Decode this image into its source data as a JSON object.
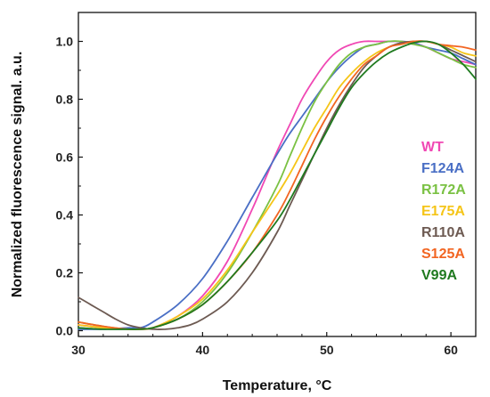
{
  "chart_data": {
    "type": "line",
    "title": "",
    "xlabel": "Temperature, °C",
    "ylabel": "Normalized fluorescence signal. a.u.",
    "xlim": [
      30,
      62
    ],
    "ylim": [
      -0.02,
      1.1
    ],
    "xticks": [
      30,
      40,
      50,
      60
    ],
    "yticks": [
      0.0,
      0.2,
      0.4,
      0.6,
      0.8,
      1.0
    ],
    "ytick_labels": [
      "0.0",
      "0.2",
      "0.4",
      "0.6",
      "0.8",
      "1.0"
    ],
    "grid": false,
    "legend_position": "right",
    "series": [
      {
        "name": "WT",
        "color": "#f048b4",
        "x": [
          30,
          32,
          34,
          35,
          36,
          38,
          40,
          42,
          44,
          45,
          46,
          47,
          48,
          49,
          50,
          51,
          52,
          53,
          54,
          55,
          56,
          57,
          58,
          59,
          60,
          61,
          62
        ],
        "y": [
          0.02,
          0.01,
          0.005,
          0.005,
          0.01,
          0.05,
          0.12,
          0.24,
          0.42,
          0.52,
          0.62,
          0.71,
          0.8,
          0.87,
          0.93,
          0.97,
          0.99,
          1.0,
          1.0,
          1.0,
          1.0,
          0.995,
          0.98,
          0.96,
          0.94,
          0.93,
          0.92
        ]
      },
      {
        "name": "F124A",
        "color": "#4a6fc5",
        "x": [
          30,
          32,
          34,
          35,
          36,
          38,
          40,
          42,
          44,
          46,
          47,
          48,
          49,
          50,
          51,
          52,
          53,
          54,
          55,
          56,
          57,
          58,
          59,
          60,
          61,
          62
        ],
        "y": [
          0.005,
          0.005,
          0.01,
          0.01,
          0.03,
          0.09,
          0.18,
          0.31,
          0.46,
          0.61,
          0.68,
          0.74,
          0.8,
          0.86,
          0.91,
          0.95,
          0.98,
          0.99,
          1.0,
          1.0,
          0.995,
          0.98,
          0.97,
          0.96,
          0.94,
          0.92
        ]
      },
      {
        "name": "R172A",
        "color": "#7ac143",
        "x": [
          30,
          32,
          34,
          35,
          36,
          38,
          40,
          42,
          44,
          46,
          47,
          48,
          49,
          50,
          51,
          52,
          53,
          54,
          55,
          56,
          57,
          58,
          59,
          60,
          61,
          62
        ],
        "y": [
          0.03,
          0.015,
          0.005,
          0.005,
          0.01,
          0.04,
          0.1,
          0.2,
          0.34,
          0.5,
          0.6,
          0.7,
          0.79,
          0.86,
          0.92,
          0.96,
          0.98,
          0.99,
          1.0,
          1.0,
          0.99,
          0.98,
          0.96,
          0.94,
          0.92,
          0.91
        ]
      },
      {
        "name": "E175A",
        "color": "#f5c518",
        "x": [
          30,
          32,
          34,
          35,
          36,
          38,
          40,
          42,
          44,
          46,
          47,
          48,
          49,
          50,
          51,
          52,
          53,
          54,
          55,
          56,
          57,
          58,
          59,
          60,
          61,
          62
        ],
        "y": [
          0.02,
          0.01,
          0.005,
          0.005,
          0.01,
          0.05,
          0.11,
          0.21,
          0.34,
          0.47,
          0.54,
          0.62,
          0.7,
          0.77,
          0.84,
          0.89,
          0.93,
          0.96,
          0.98,
          0.995,
          1.0,
          1.0,
          0.99,
          0.98,
          0.96,
          0.95
        ]
      },
      {
        "name": "R110A",
        "color": "#6d5a52",
        "x": [
          30,
          31,
          32,
          33,
          34,
          35,
          36,
          37,
          38,
          39,
          40,
          42,
          44,
          46,
          47,
          48,
          49,
          50,
          51,
          52,
          53,
          54,
          55,
          56,
          57,
          58,
          59,
          60,
          61,
          62
        ],
        "y": [
          0.115,
          0.09,
          0.065,
          0.04,
          0.02,
          0.01,
          0.005,
          0.005,
          0.01,
          0.02,
          0.04,
          0.1,
          0.2,
          0.34,
          0.43,
          0.52,
          0.61,
          0.7,
          0.78,
          0.85,
          0.91,
          0.95,
          0.98,
          0.995,
          1.0,
          1.0,
          0.99,
          0.97,
          0.95,
          0.93
        ]
      },
      {
        "name": "S125A",
        "color": "#f26522",
        "x": [
          30,
          32,
          34,
          35,
          36,
          38,
          40,
          42,
          44,
          46,
          47,
          48,
          49,
          50,
          51,
          52,
          53,
          54,
          55,
          56,
          57,
          58,
          59,
          60,
          61,
          62
        ],
        "y": [
          0.03,
          0.015,
          0.005,
          0.005,
          0.01,
          0.04,
          0.09,
          0.17,
          0.27,
          0.4,
          0.48,
          0.57,
          0.66,
          0.74,
          0.81,
          0.87,
          0.92,
          0.95,
          0.98,
          0.99,
          1.0,
          1.0,
          0.99,
          0.985,
          0.98,
          0.97
        ]
      },
      {
        "name": "V99A",
        "color": "#1f7a1f",
        "x": [
          30,
          32,
          34,
          35,
          36,
          38,
          40,
          42,
          44,
          46,
          47,
          48,
          49,
          50,
          51,
          52,
          53,
          54,
          55,
          56,
          57,
          58,
          59,
          60,
          61,
          62
        ],
        "y": [
          0.01,
          0.005,
          0.005,
          0.005,
          0.01,
          0.04,
          0.09,
          0.17,
          0.27,
          0.38,
          0.45,
          0.53,
          0.61,
          0.69,
          0.77,
          0.84,
          0.89,
          0.93,
          0.96,
          0.98,
          0.995,
          1.0,
          0.99,
          0.96,
          0.92,
          0.87
        ]
      }
    ]
  }
}
